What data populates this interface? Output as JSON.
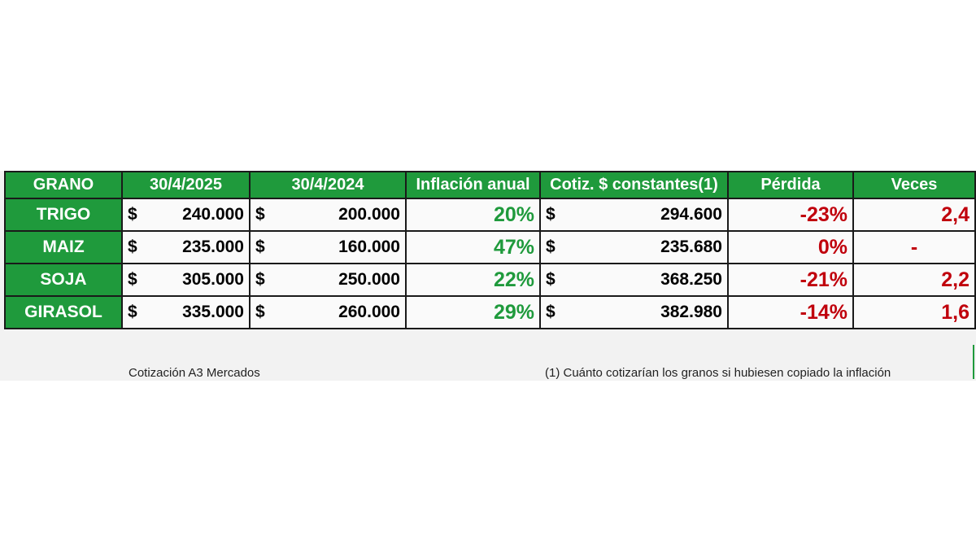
{
  "table": {
    "headers": [
      "GRANO",
      "30/4/2025",
      "30/4/2024",
      "Inflación anual",
      "Cotiz. $ constantes(1)",
      "Pérdida",
      "Veces"
    ],
    "currency_symbol": "$",
    "rows": [
      {
        "grano": "TRIGO",
        "p2025": "240.000",
        "p2024": "200.000",
        "inflacion": "20%",
        "constantes": "294.600",
        "perdida": "-23%",
        "veces": "2,4"
      },
      {
        "grano": "MAIZ",
        "p2025": "235.000",
        "p2024": "160.000",
        "inflacion": "47%",
        "constantes": "235.680",
        "perdida": "0%",
        "veces": "-"
      },
      {
        "grano": "SOJA",
        "p2025": "305.000",
        "p2024": "250.000",
        "inflacion": "22%",
        "constantes": "368.250",
        "perdida": "-21%",
        "veces": "2,2"
      },
      {
        "grano": "GIRASOL",
        "p2025": "335.000",
        "p2024": "260.000",
        "inflacion": "29%",
        "constantes": "382.980",
        "perdida": "-14%",
        "veces": "1,6"
      }
    ]
  },
  "notes": {
    "source": "Cotización A3 Mercados",
    "footnote": "(1) Cuánto cotizarían los granos si hubiesen copiado la inflación"
  },
  "colors": {
    "header_green": "#1f9a3c",
    "positive_green": "#1f9a3c",
    "negative_red": "#c0000c"
  }
}
